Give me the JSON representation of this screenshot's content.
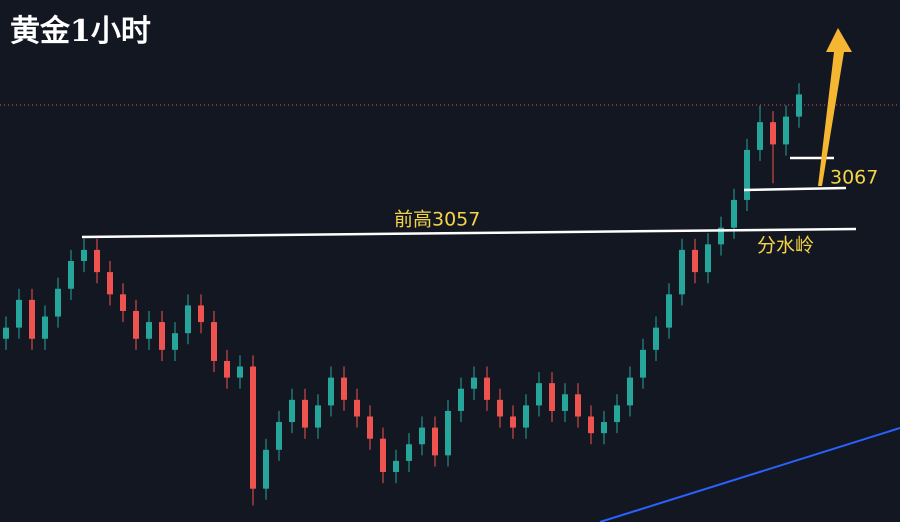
{
  "chart_data": {
    "type": "candlestick",
    "title": "黄金1小时",
    "annotations": [
      "前高3057",
      "3067",
      "分水岭"
    ],
    "open": [
      3038,
      3040,
      3045,
      3038,
      3042,
      3047,
      3052,
      3054,
      3050,
      3046,
      3043,
      3038,
      3041,
      3036,
      3039,
      3044,
      3041,
      3034,
      3031,
      3033,
      3011,
      3018,
      3023,
      3027,
      3022,
      3026,
      3031,
      3027,
      3024,
      3020,
      3014,
      3016,
      3019,
      3022,
      3017,
      3025,
      3029,
      3031,
      3027,
      3024,
      3022,
      3026,
      3030,
      3025,
      3028,
      3024,
      3021,
      3023,
      3026,
      3031,
      3036,
      3040,
      3046,
      3054,
      3050,
      3055,
      3058,
      3063,
      3072,
      3077,
      3073,
      3078
    ],
    "high": [
      3042,
      3047,
      3047,
      3044,
      3049,
      3054,
      3056,
      3056,
      3052,
      3048,
      3045,
      3043,
      3043,
      3041,
      3046,
      3046,
      3043,
      3036,
      3035,
      3035,
      3020,
      3025,
      3029,
      3029,
      3028,
      3033,
      3033,
      3029,
      3026,
      3022,
      3018,
      3021,
      3024,
      3024,
      3027,
      3031,
      3033,
      3033,
      3029,
      3026,
      3028,
      3032,
      3032,
      3030,
      3030,
      3026,
      3025,
      3028,
      3033,
      3038,
      3042,
      3048,
      3056,
      3056,
      3057,
      3060,
      3065,
      3074,
      3080,
      3079,
      3080,
      3084
    ],
    "low": [
      3036,
      3038,
      3036,
      3036,
      3040,
      3045,
      3050,
      3048,
      3044,
      3041,
      3036,
      3036,
      3034,
      3034,
      3037,
      3039,
      3032,
      3029,
      3029,
      3008,
      3009,
      3016,
      3021,
      3020,
      3020,
      3024,
      3025,
      3022,
      3018,
      3012,
      3012,
      3014,
      3017,
      3015,
      3015,
      3023,
      3027,
      3025,
      3022,
      3020,
      3020,
      3024,
      3023,
      3023,
      3022,
      3019,
      3019,
      3021,
      3024,
      3029,
      3034,
      3038,
      3044,
      3048,
      3048,
      3053,
      3056,
      3061,
      3070,
      3066,
      3071,
      3076
    ],
    "close": [
      3040,
      3045,
      3038,
      3042,
      3047,
      3052,
      3054,
      3050,
      3046,
      3043,
      3038,
      3041,
      3036,
      3039,
      3044,
      3041,
      3034,
      3031,
      3033,
      3011,
      3018,
      3023,
      3027,
      3022,
      3026,
      3031,
      3027,
      3024,
      3020,
      3014,
      3016,
      3019,
      3022,
      3017,
      3025,
      3029,
      3031,
      3027,
      3024,
      3022,
      3026,
      3030,
      3025,
      3028,
      3024,
      3021,
      3023,
      3026,
      3031,
      3036,
      3040,
      3046,
      3054,
      3050,
      3055,
      3058,
      3063,
      3072,
      3077,
      3073,
      3078,
      3082
    ],
    "up_color": "#26a69a",
    "down_color": "#ef5350",
    "ylim": [
      3005,
      3099
    ]
  }
}
